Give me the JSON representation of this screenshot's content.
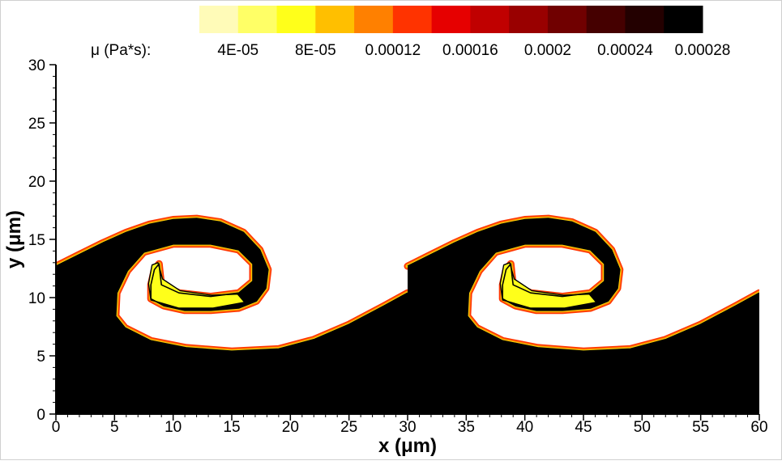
{
  "chart_data": {
    "type": "heatmap",
    "title": "",
    "xlabel": "x (μm)",
    "ylabel": "y (μm)",
    "xlim": [
      0,
      60
    ],
    "ylim": [
      0,
      30
    ],
    "x_ticks": [
      "0",
      "5",
      "10",
      "15",
      "20",
      "25",
      "30",
      "35",
      "40",
      "45",
      "50",
      "55",
      "60"
    ],
    "y_ticks": [
      "0",
      "5",
      "10",
      "15",
      "20",
      "25",
      "30"
    ],
    "grid": false,
    "colorbar": {
      "title": "μ (Pa*s):",
      "placement": "top",
      "levels": [
        {
          "color": "#fffbb8"
        },
        {
          "color": "#ffff66"
        },
        {
          "color": "#ffff1a"
        },
        {
          "color": "#ffbf00"
        },
        {
          "color": "#ff8000"
        },
        {
          "color": "#ff3300"
        },
        {
          "color": "#e60000"
        },
        {
          "color": "#c00000"
        },
        {
          "color": "#990000"
        },
        {
          "color": "#700000"
        },
        {
          "color": "#450000"
        },
        {
          "color": "#230000"
        },
        {
          "color": "#000000"
        }
      ],
      "tick_labels": [
        "4E-05",
        "8E-05",
        "0.00012",
        "0.00016",
        "0.0002",
        "0.00024",
        "0.00028"
      ]
    },
    "field": {
      "high_viscosity_color": "#000000",
      "low_viscosity_color": "#ffffff",
      "interface_colors": [
        "#ff3300",
        "#ff8000",
        "#ffbf00",
        "#ffff1a"
      ],
      "vortex_core_color": "#ffff1a",
      "period_x": 30,
      "interface_outline": [
        [
          0,
          12.7
        ],
        [
          2,
          13.7
        ],
        [
          4,
          14.7
        ],
        [
          6,
          15.6
        ],
        [
          8,
          16.3
        ],
        [
          10,
          16.7
        ],
        [
          12,
          16.8
        ],
        [
          14,
          16.5
        ],
        [
          16,
          15.6
        ],
        [
          17.4,
          14.1
        ],
        [
          18.1,
          12.4
        ],
        [
          17.9,
          10.8
        ],
        [
          17.1,
          9.7
        ],
        [
          15.6,
          9.1
        ],
        [
          13.2,
          8.9
        ],
        [
          11,
          8.9
        ],
        [
          9.2,
          9.3
        ],
        [
          8.1,
          9.9
        ],
        [
          8.1,
          11.1
        ],
        [
          8.4,
          12.4
        ],
        [
          8.8,
          12.9
        ],
        [
          8.9,
          11.9
        ],
        [
          9,
          11.1
        ],
        [
          10.5,
          10.4
        ],
        [
          13.2,
          10.1
        ],
        [
          15.6,
          10.4
        ],
        [
          16.8,
          11.4
        ],
        [
          16.8,
          12.9
        ],
        [
          15.6,
          14.1
        ],
        [
          13.2,
          14.6
        ],
        [
          10,
          14.6
        ],
        [
          7.5,
          13.9
        ],
        [
          6.1,
          12.3
        ],
        [
          5.2,
          10.4
        ],
        [
          5.1,
          8.4
        ],
        [
          5.9,
          7.4
        ],
        [
          8.1,
          6.3
        ],
        [
          11.1,
          5.7
        ],
        [
          15,
          5.4
        ],
        [
          19,
          5.6
        ],
        [
          22,
          6.4
        ],
        [
          25,
          7.7
        ],
        [
          28,
          9.3
        ],
        [
          30,
          10.4
        ]
      ]
    }
  }
}
